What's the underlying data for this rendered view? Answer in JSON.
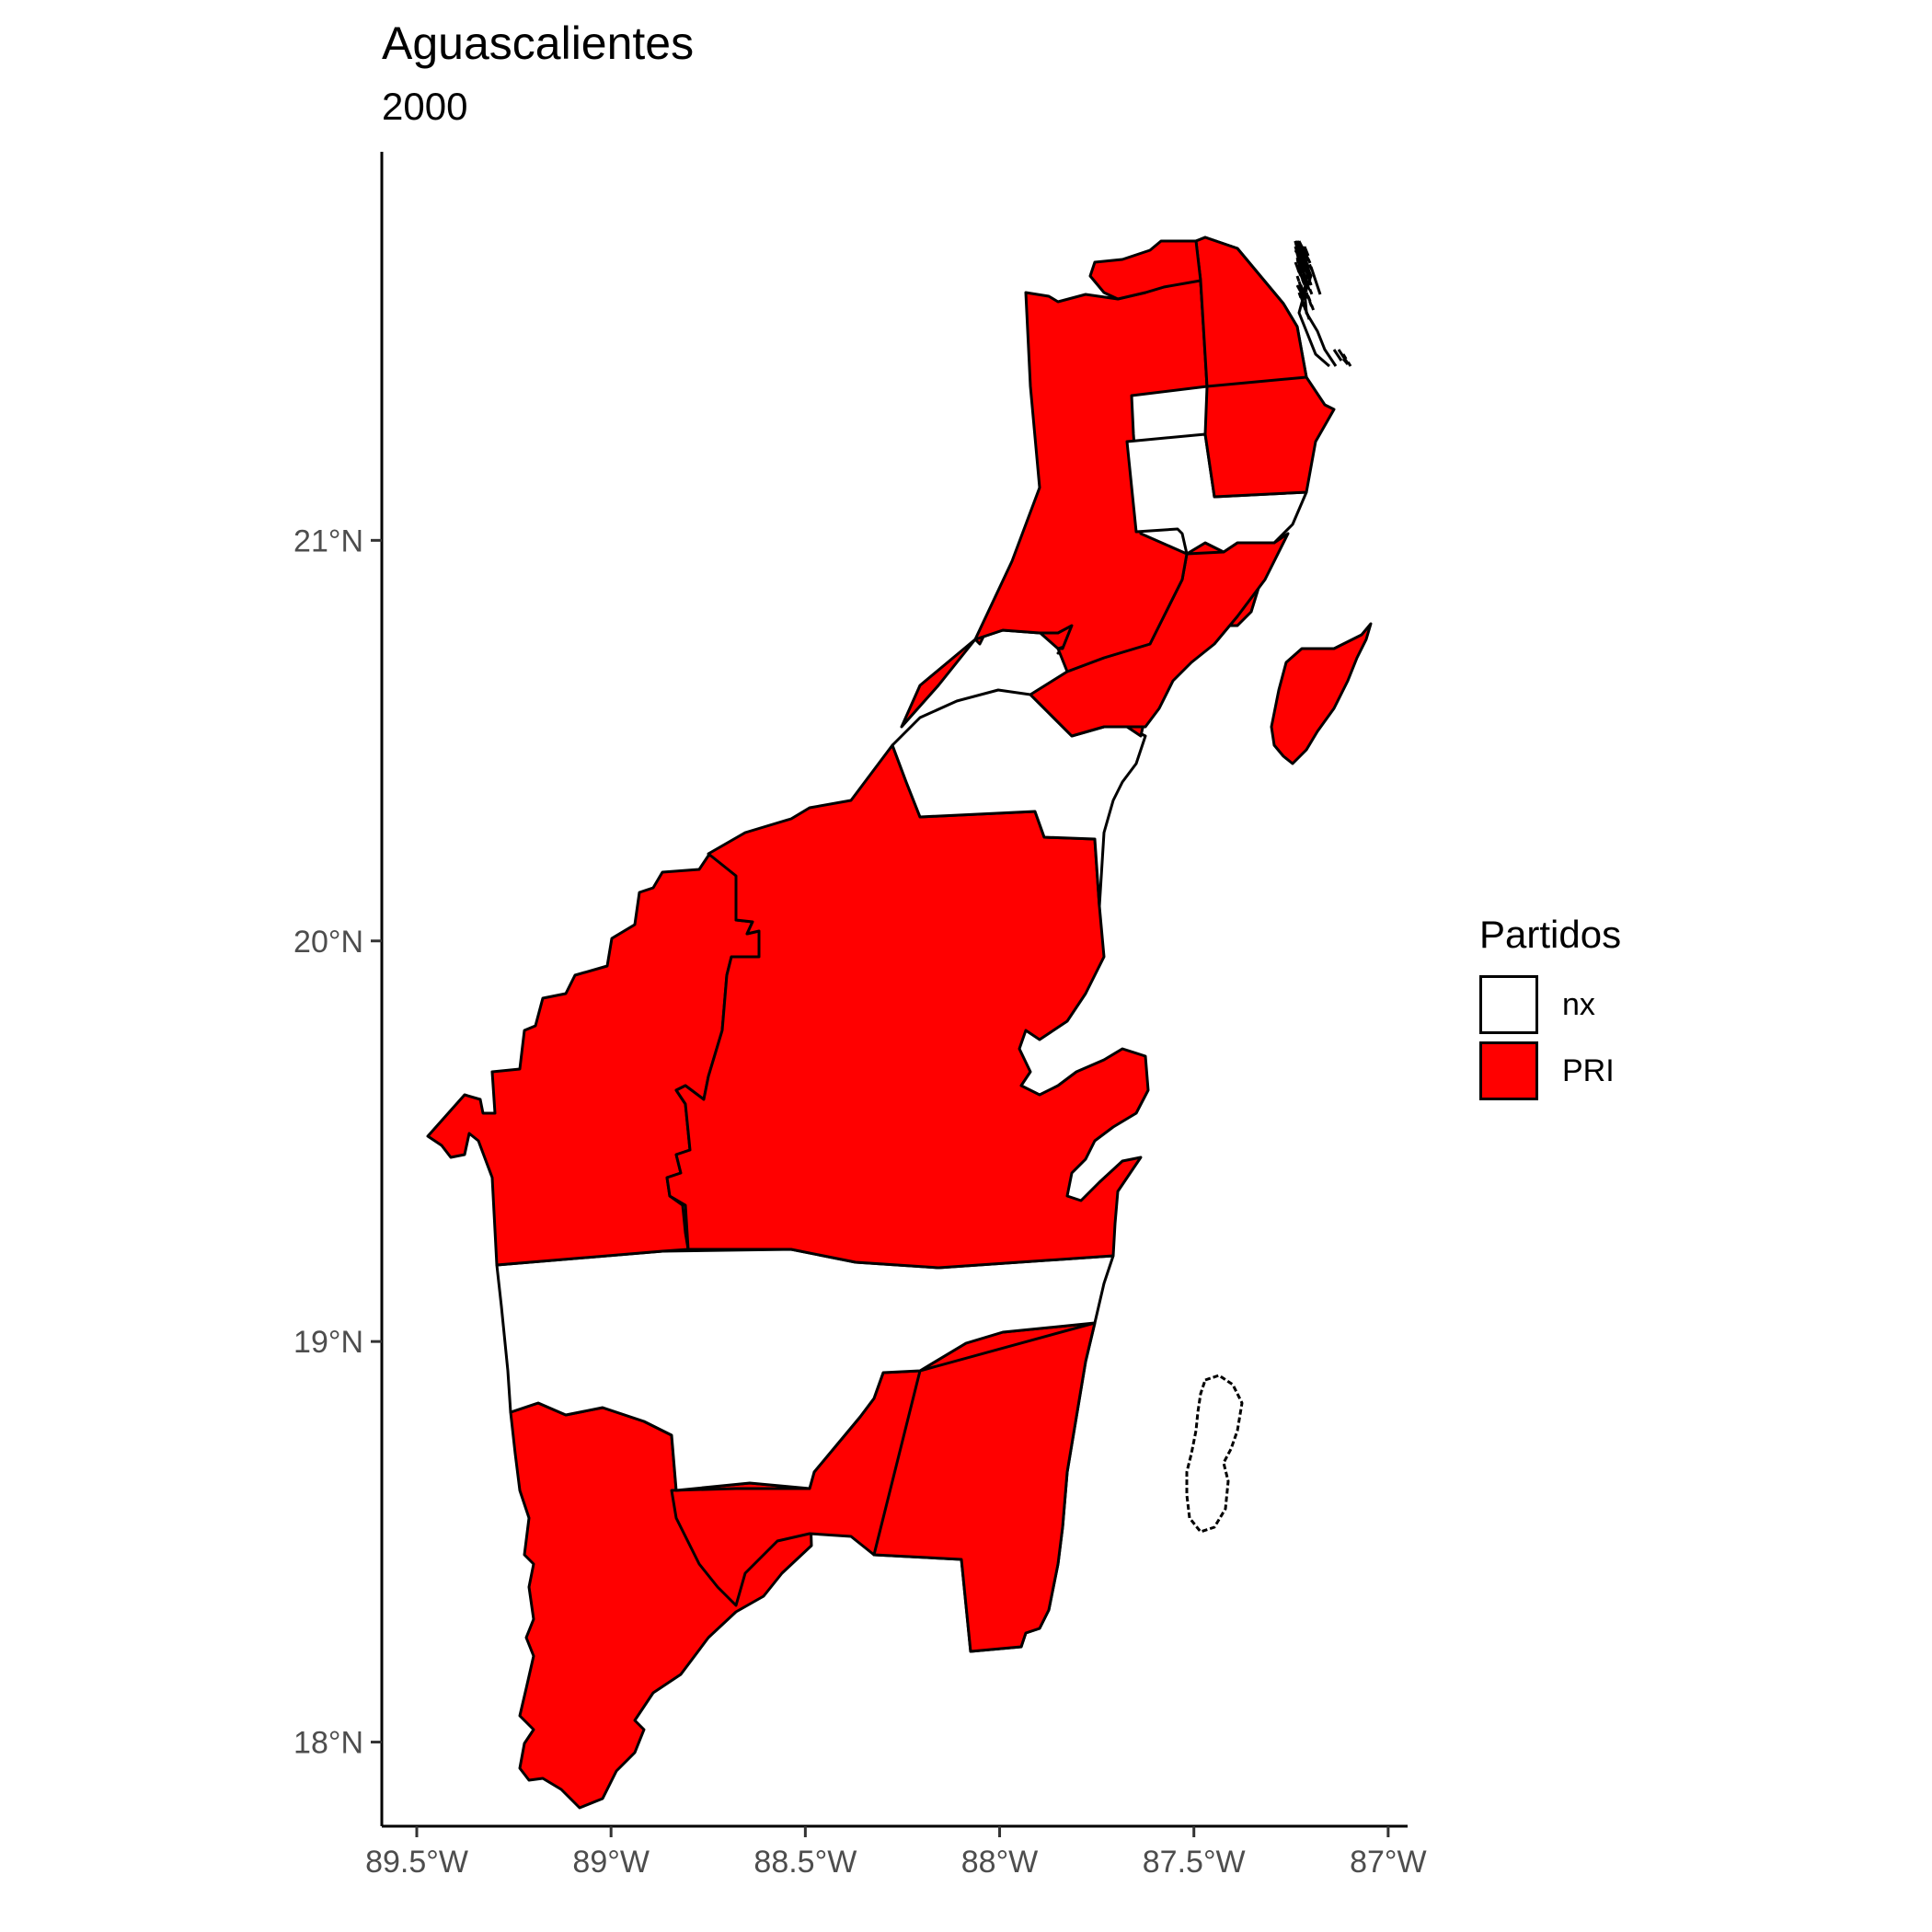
{
  "title": "Aguascalientes",
  "subtitle": "2000",
  "legend": {
    "title": "Partidos",
    "items": [
      {
        "label": "nx",
        "color": "#FFFFFF"
      },
      {
        "label": "PRI",
        "color": "#FF0000"
      }
    ]
  },
  "chart_data": {
    "type": "choropleth",
    "title": "Aguascalientes",
    "subtitle": "2000",
    "x_ticks": [
      "89.5°W",
      "89°W",
      "88.5°W",
      "88°W",
      "87.5°W",
      "87°W"
    ],
    "y_ticks": [
      "18°N",
      "19°N",
      "20°N",
      "21°N"
    ],
    "x_tick_values": [
      -89.5,
      -89.0,
      -88.5,
      -88.0,
      -87.5,
      -87.0
    ],
    "y_tick_values": [
      18,
      19,
      20,
      21
    ],
    "xlim": [
      -89.59,
      -86.95
    ],
    "ylim": [
      17.79,
      21.97
    ],
    "fill_categories": [
      "nx",
      "PRI"
    ],
    "colors": {
      "nx": "#FFFFFF",
      "PRI": "#FF0000"
    },
    "grid": false,
    "legend_position": "right"
  }
}
